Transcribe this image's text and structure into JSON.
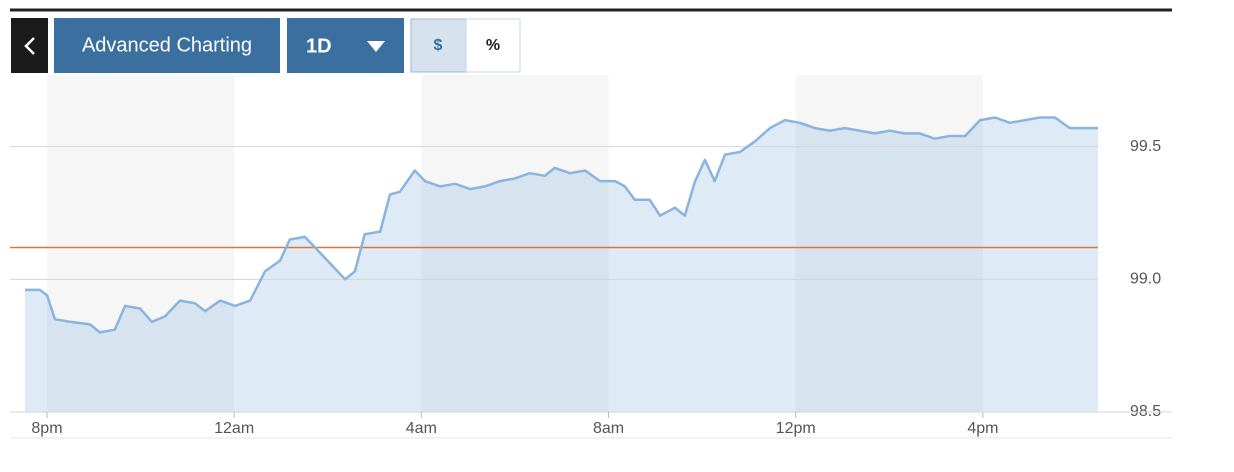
{
  "toolbar": {
    "title": "Advanced Charting",
    "period": "1D",
    "dollar": "$",
    "percent": "%"
  },
  "chart_data": {
    "type": "area",
    "x": [
      -0.47,
      -0.15,
      0,
      0.17,
      0.49,
      0.92,
      1.13,
      1.45,
      1.67,
      1.99,
      2.24,
      2.52,
      2.84,
      3.16,
      3.38,
      3.7,
      4.02,
      4.34,
      4.66,
      4.98,
      5.19,
      5.51,
      5.73,
      6.05,
      6.37,
      6.58,
      6.79,
      7.12,
      7.33,
      7.54,
      7.86,
      8.08,
      8.4,
      8.72,
      9.04,
      9.36,
      9.68,
      10.0,
      10.32,
      10.64,
      10.85,
      11.18,
      11.5,
      11.82,
      12.14,
      12.35,
      12.56,
      12.88,
      13.1,
      13.42,
      13.63,
      13.85,
      14.06,
      14.27,
      14.49,
      14.81,
      15.13,
      15.45,
      15.77,
      16.09,
      16.41,
      16.73,
      17.05,
      17.37,
      17.69,
      18.01,
      18.33,
      18.65,
      18.97,
      19.29,
      19.62,
      19.94,
      20.26,
      20.58,
      20.9,
      21.22,
      21.54,
      21.86,
      22.18,
      22.46
    ],
    "values": [
      98.96,
      98.96,
      98.94,
      98.85,
      98.84,
      98.83,
      98.8,
      98.81,
      98.9,
      98.89,
      98.84,
      98.86,
      98.92,
      98.91,
      98.88,
      98.92,
      98.9,
      98.92,
      99.03,
      99.07,
      99.15,
      99.16,
      99.12,
      99.06,
      99.0,
      99.03,
      99.17,
      99.18,
      99.32,
      99.33,
      99.41,
      99.37,
      99.35,
      99.36,
      99.34,
      99.35,
      99.37,
      99.38,
      99.4,
      99.39,
      99.42,
      99.4,
      99.41,
      99.37,
      99.37,
      99.35,
      99.3,
      99.3,
      99.24,
      99.27,
      99.24,
      99.37,
      99.45,
      99.37,
      99.47,
      99.48,
      99.52,
      99.57,
      99.6,
      99.59,
      99.57,
      99.56,
      99.57,
      99.56,
      99.55,
      99.56,
      99.55,
      99.55,
      99.53,
      99.54,
      99.54,
      99.6,
      99.61,
      99.59,
      99.6,
      99.61,
      99.61,
      99.57,
      99.57,
      99.57
    ],
    "color": "#8ab4e0",
    "reference_line": {
      "value": 99.12,
      "color": "#d9773a"
    },
    "xlim": [
      -0.79,
      22.46
    ],
    "xticks": [
      {
        "value": 0,
        "label": "8pm"
      },
      {
        "value": 4,
        "label": "12am"
      },
      {
        "value": 8,
        "label": "4am"
      },
      {
        "value": 12,
        "label": "8am"
      },
      {
        "value": 16,
        "label": "12pm"
      },
      {
        "value": 20,
        "label": "4pm"
      }
    ],
    "ylim": [
      98.5,
      99.77
    ],
    "yticks": [
      98.5,
      {
        "value": 99,
        "label": "99.0"
      },
      99.5
    ],
    "grid": true
  }
}
